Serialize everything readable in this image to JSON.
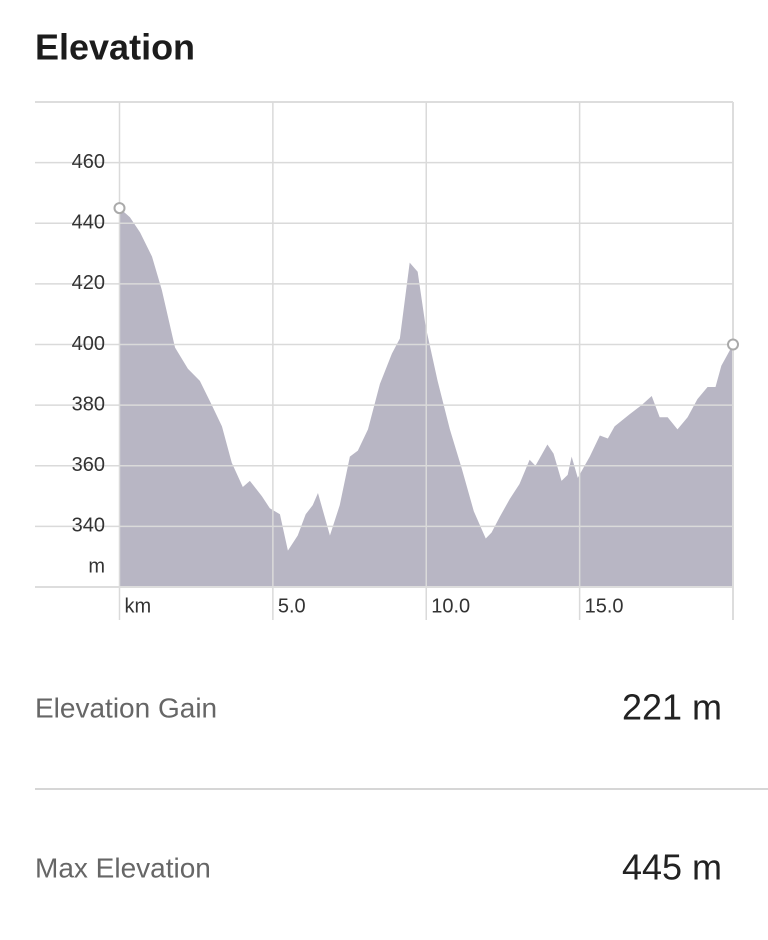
{
  "title": "Elevation",
  "chart_data": {
    "type": "area",
    "color": "#b8b6c4",
    "x": [
      0,
      0.34,
      0.67,
      1.06,
      1.38,
      1.81,
      2.23,
      2.62,
      3.01,
      3.34,
      3.66,
      4.02,
      4.25,
      4.64,
      4.9,
      5.23,
      5.49,
      5.81,
      6.07,
      6.3,
      6.47,
      6.86,
      7.18,
      7.51,
      7.77,
      8.1,
      8.49,
      8.88,
      9.14,
      9.46,
      9.72,
      9.98,
      10.37,
      10.77,
      11.16,
      11.55,
      11.94,
      12.13,
      12.39,
      12.72,
      13.04,
      13.37,
      13.56,
      13.95,
      14.15,
      14.41,
      14.61,
      14.74,
      14.94,
      15.33,
      15.66,
      15.92,
      16.14,
      16.63,
      17.02,
      17.35,
      17.61,
      17.87,
      18.19,
      18.52,
      18.84,
      19.17,
      19.43,
      19.62,
      20
    ],
    "values": [
      445,
      442,
      437,
      429,
      418,
      399,
      392,
      388,
      380,
      373,
      361,
      353,
      355,
      350,
      346,
      344,
      332,
      337,
      344,
      347,
      351,
      337,
      347,
      363,
      365,
      372,
      387,
      397,
      402,
      427,
      424,
      406,
      388,
      372,
      359,
      345,
      336,
      338,
      343,
      349,
      354,
      362,
      360,
      367,
      364,
      355,
      357,
      363,
      356,
      363,
      370,
      369,
      373,
      377,
      380,
      383,
      376,
      376,
      372,
      376,
      382,
      386,
      386,
      393,
      400
    ],
    "xlim": [
      0,
      20
    ],
    "ylim": [
      320,
      480
    ],
    "xticks": [
      {
        "value": 0,
        "label": "km"
      },
      {
        "value": 5,
        "label": "5.0"
      },
      {
        "value": 10,
        "label": "10.0"
      },
      {
        "value": 15,
        "label": "15.0"
      }
    ],
    "yticks": [
      340,
      360,
      380,
      400,
      420,
      440,
      460
    ],
    "y_unit": "m",
    "grid": true
  },
  "stats": [
    {
      "label": "Elevation Gain",
      "value": "221 m"
    },
    {
      "label": "Max Elevation",
      "value": "445 m"
    }
  ]
}
